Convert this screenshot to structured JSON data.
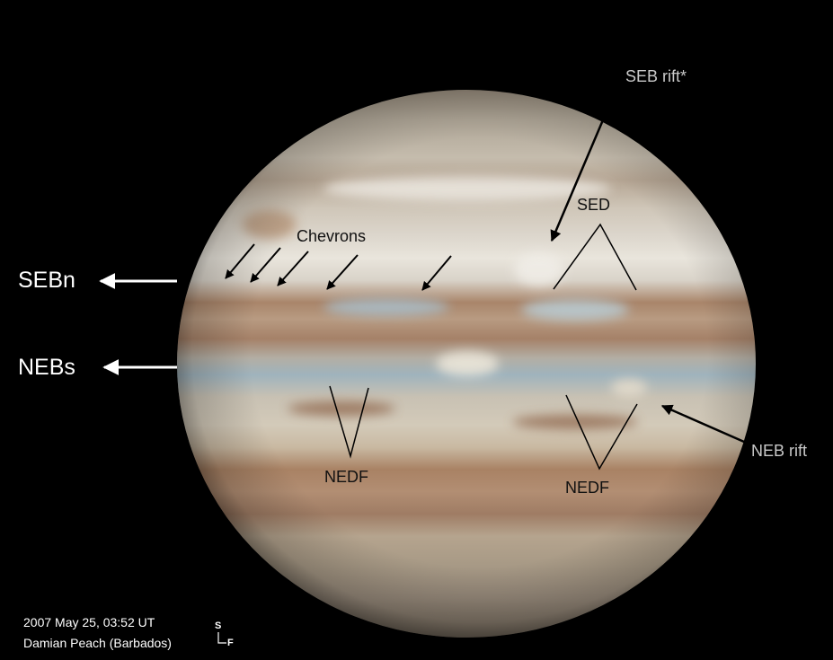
{
  "image": {
    "subject": "jupiter-disk",
    "background_color": "#000000",
    "planet_palette": {
      "zone_light": "#e9e5dc",
      "belt_brown": "#a9856a",
      "belt_blue": "#9fb3bd",
      "limb_dark": "#5d5448"
    }
  },
  "labels": {
    "sebn": "SEBn",
    "nebs": "NEBs",
    "chevrons": "Chevrons",
    "sed": "SED",
    "seb_rift": "SEB rift*",
    "nedf_left": "NEDF",
    "nedf_right": "NEDF",
    "neb_rift": "NEB rift"
  },
  "caption": {
    "line1": "2007 May 25, 03:52 UT",
    "line2": "Damian Peach (Barbados)"
  },
  "compass": {
    "south": "S",
    "following": "F"
  }
}
